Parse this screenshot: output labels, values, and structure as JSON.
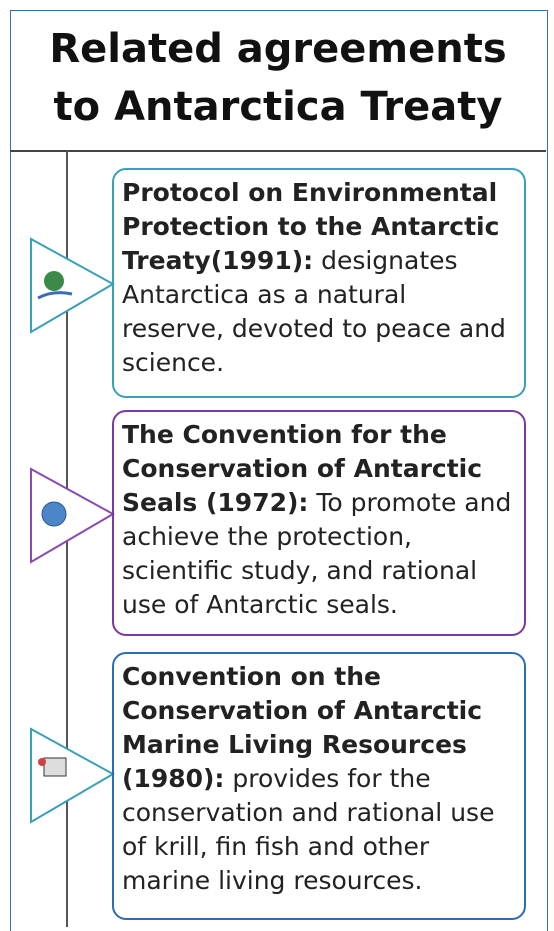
{
  "header": {
    "title_line1": "Related agreements",
    "title_line2": "to Antarctica Treaty"
  },
  "items": [
    {
      "name": "Protocol on Environmental Protection to the Antarctic Treaty(1991):",
      "text": " designates Antarctica as a natural reserve, devoted to peace and science."
    },
    {
      "name": "The Convention for the Conservation of Antarctic Seals (1972):",
      "text": " To promote and achieve the protection, scientific study, and rational use of Antarctic seals."
    },
    {
      "name": "Convention on the Conservation of Antarctic Marine Living Resources (1980):",
      "text": " provides for the conservation and rational use of krill, fin fish and other marine living resources."
    }
  ]
}
